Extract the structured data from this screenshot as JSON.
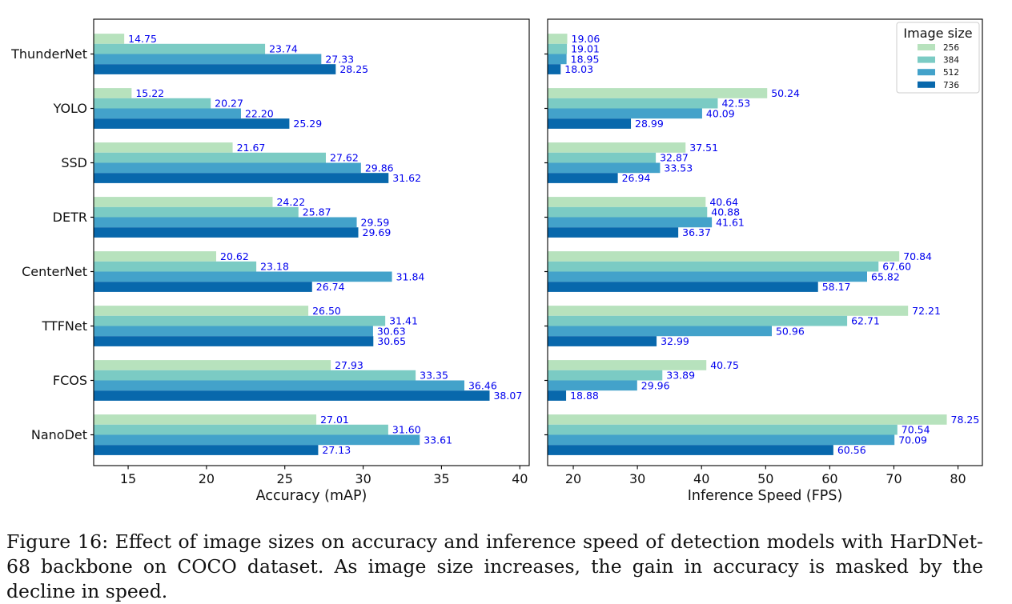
{
  "caption": {
    "label": "Figure 16:",
    "text": "Effect of image sizes on accuracy and inference speed of detection models with HarDNet-68 backbone on COCO dataset. As image size increases, the gain in accuracy is masked by the decline in speed."
  },
  "colors": {
    "256": "#b7e2bd",
    "384": "#7bcbc4",
    "512": "#43a2ca",
    "736": "#0868ac",
    "value_label": "#0000ee"
  },
  "legend": {
    "title": "Image size",
    "entries": [
      "256",
      "384",
      "512",
      "736"
    ]
  },
  "chart_data": [
    {
      "type": "bar",
      "orientation": "horizontal",
      "xlabel": "Accuracy (mAP)",
      "xlim": [
        12.8,
        40.6
      ],
      "xticks": [
        "15",
        "20",
        "25",
        "30",
        "35",
        "40"
      ],
      "categories": [
        "ThunderNet",
        "YOLO",
        "SSD",
        "DETR",
        "CenterNet",
        "TTFNet",
        "FCOS",
        "NanoDet"
      ],
      "series": [
        {
          "name": "256",
          "values": [
            14.75,
            15.22,
            21.67,
            24.22,
            20.62,
            26.5,
            27.93,
            27.01
          ],
          "labels": [
            "14.75",
            "15.22",
            "21.67",
            "24.22",
            "20.62",
            "26.50",
            "27.93",
            "27.01"
          ]
        },
        {
          "name": "384",
          "values": [
            23.74,
            20.27,
            27.62,
            25.87,
            23.18,
            31.41,
            33.35,
            31.6
          ],
          "labels": [
            "23.74",
            "20.27",
            "27.62",
            "25.87",
            "23.18",
            "31.41",
            "33.35",
            "31.60"
          ]
        },
        {
          "name": "512",
          "values": [
            27.33,
            22.2,
            29.86,
            29.59,
            31.84,
            30.63,
            36.46,
            33.61
          ],
          "labels": [
            "27.33",
            "22.20",
            "29.86",
            "29.59",
            "31.84",
            "30.63",
            "36.46",
            "33.61"
          ]
        },
        {
          "name": "736",
          "values": [
            28.25,
            25.29,
            31.62,
            29.69,
            26.74,
            30.65,
            38.07,
            27.13
          ],
          "labels": [
            "28.25",
            "25.29",
            "31.62",
            "29.69",
            "26.74",
            "30.65",
            "38.07",
            "27.13"
          ]
        }
      ],
      "legend": "none"
    },
    {
      "type": "bar",
      "orientation": "horizontal",
      "xlabel": "Inference Speed (FPS)",
      "xlim": [
        16,
        83.8
      ],
      "xticks": [
        "20",
        "30",
        "40",
        "50",
        "60",
        "70",
        "80"
      ],
      "categories": [
        "ThunderNet",
        "YOLO",
        "SSD",
        "DETR",
        "CenterNet",
        "TTFNet",
        "FCOS",
        "NanoDet"
      ],
      "series": [
        {
          "name": "256",
          "values": [
            19.06,
            50.24,
            37.51,
            40.64,
            70.84,
            72.21,
            40.75,
            78.25
          ],
          "labels": [
            "19.06",
            "50.24",
            "37.51",
            "40.64",
            "70.84",
            "72.21",
            "40.75",
            "78.25"
          ]
        },
        {
          "name": "384",
          "values": [
            19.01,
            42.53,
            32.87,
            40.88,
            67.6,
            62.71,
            33.89,
            70.54
          ],
          "labels": [
            "19.01",
            "42.53",
            "32.87",
            "40.88",
            "67.60",
            "62.71",
            "33.89",
            "70.54"
          ]
        },
        {
          "name": "512",
          "values": [
            18.95,
            40.09,
            33.53,
            41.61,
            65.82,
            50.96,
            29.96,
            70.09
          ],
          "labels": [
            "18.95",
            "40.09",
            "33.53",
            "41.61",
            "65.82",
            "50.96",
            "29.96",
            "70.09"
          ]
        },
        {
          "name": "736",
          "values": [
            18.03,
            28.99,
            26.94,
            36.37,
            58.17,
            32.99,
            18.88,
            60.56
          ],
          "labels": [
            "18.03",
            "28.99",
            "26.94",
            "36.37",
            "58.17",
            "32.99",
            "18.88",
            "60.56"
          ]
        }
      ],
      "legend": "top-right"
    }
  ]
}
